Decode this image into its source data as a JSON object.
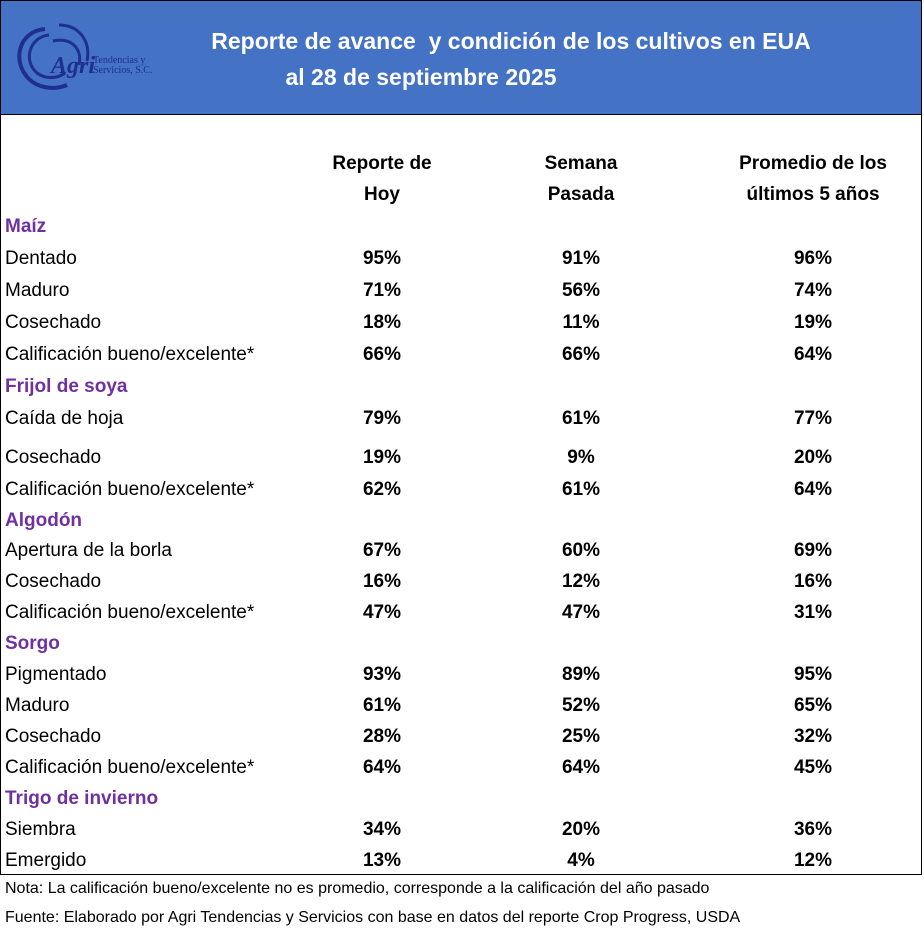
{
  "header": {
    "title_line1": "Reporte de avance  y condición de los cultivos en EUA",
    "title_line2": "al 28 de septiembre 2025",
    "logo_text": "Agri",
    "logo_subtext1": "Tendencias y",
    "logo_subtext2": "Servicios, S.C."
  },
  "columns": {
    "today_l1": "Reporte de",
    "today_l2": "Hoy",
    "last_l1": "Semana",
    "last_l2": "Pasada",
    "avg_l1": "Promedio de los",
    "avg_l2": "últimos 5 años"
  },
  "rows": [
    {
      "label": "Maíz",
      "section": true
    },
    {
      "label": "Dentado",
      "today": "95%",
      "last": "91%",
      "avg": "96%"
    },
    {
      "label": "Maduro",
      "today": "71%",
      "last": "56%",
      "avg": "74%"
    },
    {
      "label": "Cosechado",
      "today": "18%",
      "last": "11%",
      "avg": "19%"
    },
    {
      "label": "Calificación bueno/excelente*",
      "today": "66%",
      "last": "66%",
      "avg": "64%"
    },
    {
      "label": "Frijol de soya",
      "section": true
    },
    {
      "label": "Caída de hoja",
      "today": "79%",
      "last": "61%",
      "avg": "77%"
    },
    {
      "label": "Cosechado",
      "today": "19%",
      "last": "9%",
      "avg": "20%"
    },
    {
      "label": "Calificación bueno/excelente*",
      "today": "62%",
      "last": "61%",
      "avg": "64%"
    },
    {
      "label": "Algodón",
      "section": true
    },
    {
      "label": "Apertura de la borla",
      "today": "67%",
      "last": "60%",
      "avg": "69%"
    },
    {
      "label": "Cosechado",
      "today": "16%",
      "last": "12%",
      "avg": "16%"
    },
    {
      "label": "Calificación bueno/excelente*",
      "today": "47%",
      "last": "47%",
      "avg": "31%"
    },
    {
      "label": "Sorgo",
      "section": true
    },
    {
      "label": "Pigmentado",
      "today": "93%",
      "last": "89%",
      "avg": "95%"
    },
    {
      "label": "Maduro",
      "today": "61%",
      "last": "52%",
      "avg": "65%"
    },
    {
      "label": "Cosechado",
      "today": "28%",
      "last": "25%",
      "avg": "32%"
    },
    {
      "label": "Calificación bueno/excelente*",
      "today": "64%",
      "last": "64%",
      "avg": "45%"
    },
    {
      "label": "Trigo de invierno",
      "section": true
    },
    {
      "label": "Siembra",
      "today": "34%",
      "last": "20%",
      "avg": "36%"
    },
    {
      "label": "Emergido",
      "today": "13%",
      "last": "4%",
      "avg": "12%"
    }
  ],
  "notes": {
    "nota": "Nota: La calificación bueno/excelente no es promedio, corresponde a la  calificación del año pasado",
    "fuente": "Fuente: Elaborado por Agri Tendencias y Servicios con base en datos del reporte Crop Progress, USDA"
  }
}
